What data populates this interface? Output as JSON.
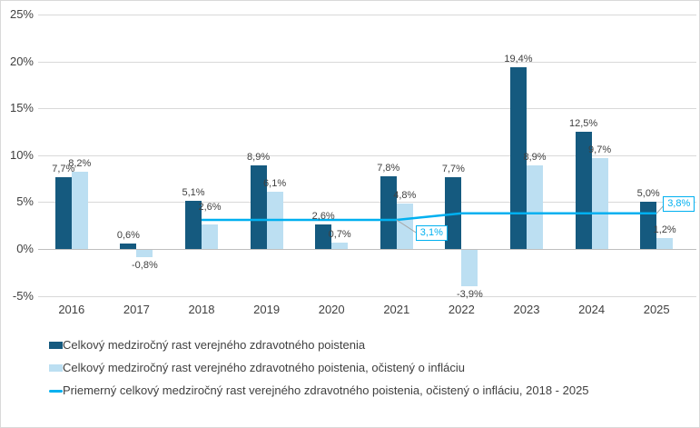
{
  "chart_data": {
    "type": "bar",
    "title": "",
    "categories": [
      "2016",
      "2017",
      "2018",
      "2019",
      "2020",
      "2021",
      "2022",
      "2023",
      "2024",
      "2025"
    ],
    "y_axis": {
      "ticks": [
        {
          "value": 25,
          "label": "25%"
        },
        {
          "value": 20,
          "label": "20%"
        },
        {
          "value": 15,
          "label": "15%"
        },
        {
          "value": 10,
          "label": "10%"
        },
        {
          "value": 5,
          "label": "5%"
        },
        {
          "value": 0,
          "label": "0%"
        },
        {
          "value": -5,
          "label": "-5%"
        }
      ],
      "range": [
        -5,
        25
      ],
      "grid": true
    },
    "series": [
      {
        "name": "Celkový medziročný rast verejného zdravotného poistenia",
        "color": "#155a7f",
        "values": [
          7.7,
          0.6,
          5.1,
          8.9,
          2.6,
          7.8,
          7.7,
          19.4,
          12.5,
          5.0
        ],
        "labels": [
          "7,7%",
          "0,6%",
          "5,1%",
          "8,9%",
          "2,6%",
          "7,8%",
          "7,7%",
          "19,4%",
          "12,5%",
          "5,0%"
        ]
      },
      {
        "name": "Celkový medziročný rast verejného zdravotného poistenia, očistený o infláciu",
        "color": "#bcdff2",
        "values": [
          8.2,
          -0.8,
          2.6,
          6.1,
          0.7,
          4.8,
          -3.9,
          8.9,
          9.7,
          1.2
        ],
        "labels": [
          "8,2%",
          "-0,8%",
          "2,6%",
          "6,1%",
          "0,7%",
          "4,8%",
          "-3,9%",
          "8,9%",
          "9,7%",
          "1,2%"
        ]
      }
    ],
    "line_series": {
      "name": "Priemerný celkový medziročný rast verejného zdravotného poistenia, očistený o infláciu, 2018 - 2025",
      "color": "#00b0f0",
      "values": [
        null,
        null,
        3.1,
        3.1,
        3.1,
        3.1,
        3.8,
        3.8,
        3.8,
        3.8
      ],
      "callouts": [
        {
          "label": "3,1%",
          "category": "2021"
        },
        {
          "label": "3,8%",
          "category": "2025"
        }
      ]
    },
    "legend_position": "bottom"
  }
}
